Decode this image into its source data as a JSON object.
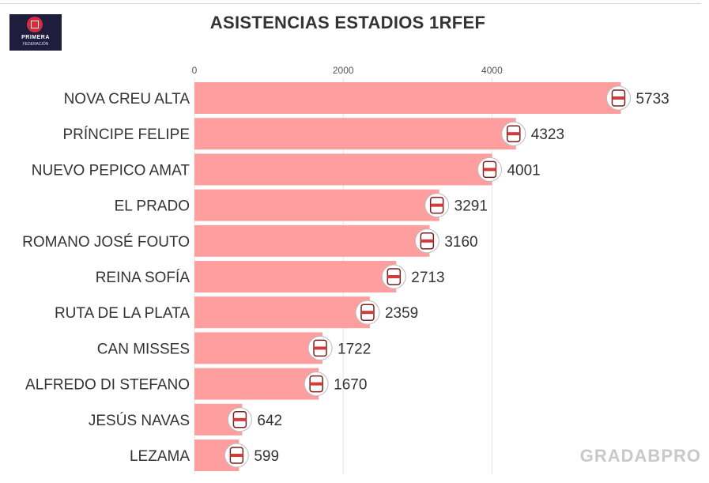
{
  "header": {
    "title": "ASISTENCIAS ESTADIOS 1RFEF",
    "logo_text": "PRIMERA",
    "logo_sub": "FEDERACIÓN"
  },
  "watermark": "GRADABPRO",
  "colors": {
    "bar": "#ff9e9e",
    "grid": "#e3e3e3",
    "text": "#333333"
  },
  "chart_data": {
    "type": "bar",
    "orientation": "horizontal",
    "title": "ASISTENCIAS ESTADIOS 1RFEF",
    "categories": [
      "NOVA CREU ALTA",
      "PRÍNCIPE FELIPE",
      "NUEVO PEPICO AMAT",
      "EL PRADO",
      "ROMANO JOSÉ FOUTO",
      "REINA SOFÍA",
      "RUTA DE LA PLATA",
      "CAN MISSES",
      "ALFREDO DI STEFANO",
      "JESÚS NAVAS",
      "LEZAMA"
    ],
    "values": [
      5733,
      4323,
      4001,
      3291,
      3160,
      2713,
      2359,
      1722,
      1670,
      642,
      599
    ],
    "xticks": [
      "0",
      "2000",
      "4000"
    ],
    "xlim": [
      0,
      6700
    ],
    "grid": true,
    "data_labels": true,
    "icons": [
      "sabadell-crest-icon",
      "villarreal-crest-icon",
      "eldense-crest-icon",
      "talavera-crest-icon",
      "merida-crest-icon",
      "antequera-crest-icon",
      "extremadura-crest-icon",
      "ibiza-crest-icon",
      "real-madrid-crest-icon",
      "sevilla-crest-icon",
      "athletic-crest-icon"
    ]
  }
}
